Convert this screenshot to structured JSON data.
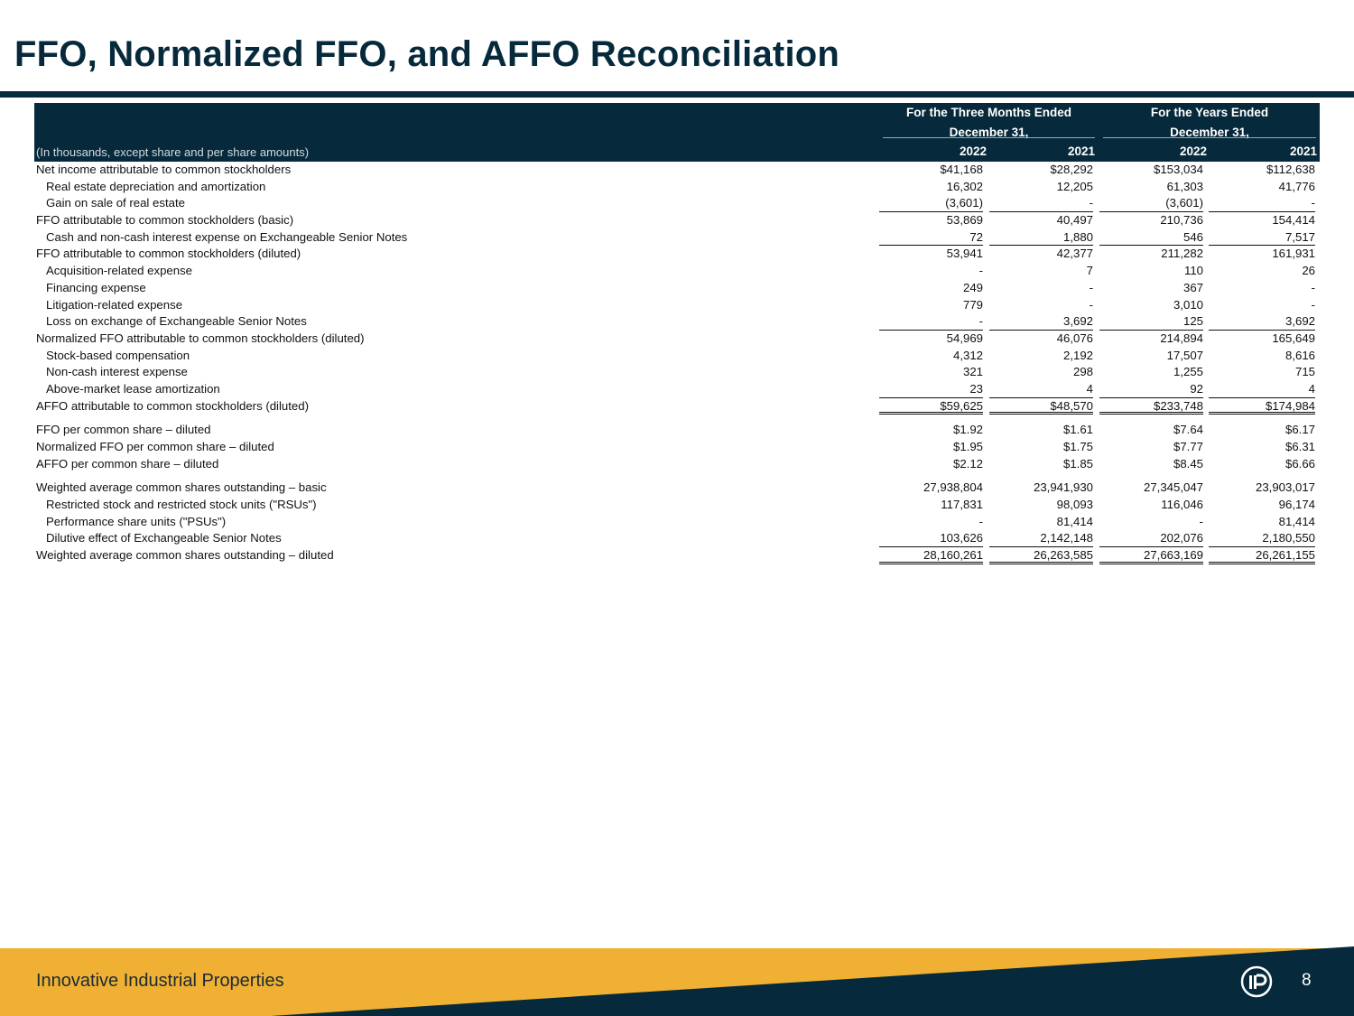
{
  "title": "FFO, Normalized FFO, and AFFO Reconciliation",
  "table": {
    "group_headers": [
      {
        "line1": "For the Three Months Ended",
        "line2": "December 31,"
      },
      {
        "line1": "For the Years Ended",
        "line2": "December 31,"
      }
    ],
    "caption": "(In thousands, except share and per share amounts)",
    "years": [
      "2022",
      "2021",
      "2022",
      "2021"
    ],
    "rows": [
      {
        "label": "Net income attributable to common stockholders",
        "values": [
          "$41,168",
          "$28,292",
          "$153,034",
          "$112,638"
        ]
      },
      {
        "label": "Real estate depreciation and amortization",
        "values": [
          "16,302",
          "12,205",
          "61,303",
          "41,776"
        ]
      },
      {
        "label": "Gain on sale of real estate",
        "values": [
          "(3,601)",
          "-",
          "(3,601)",
          "-"
        ]
      },
      {
        "label": "FFO attributable to common stockholders (basic)",
        "values": [
          "53,869",
          "40,497",
          "210,736",
          "154,414"
        ]
      },
      {
        "label": "Cash and non-cash interest expense on Exchangeable Senior Notes",
        "values": [
          "72",
          "1,880",
          "546",
          "7,517"
        ]
      },
      {
        "label": "FFO attributable to common stockholders (diluted)",
        "values": [
          "53,941",
          "42,377",
          "211,282",
          "161,931"
        ]
      },
      {
        "label": "Acquisition-related expense",
        "values": [
          "-",
          "7",
          "110",
          "26"
        ]
      },
      {
        "label": "Financing expense",
        "values": [
          "249",
          "-",
          "367",
          "-"
        ]
      },
      {
        "label": "Litigation-related expense",
        "values": [
          "779",
          "-",
          "3,010",
          "-"
        ]
      },
      {
        "label": "Loss on exchange of Exchangeable Senior Notes",
        "values": [
          "-",
          "3,692",
          "125",
          "3,692"
        ]
      },
      {
        "label": "Normalized FFO attributable to common stockholders (diluted)",
        "values": [
          "54,969",
          "46,076",
          "214,894",
          "165,649"
        ]
      },
      {
        "label": "Stock-based compensation",
        "values": [
          "4,312",
          "2,192",
          "17,507",
          "8,616"
        ]
      },
      {
        "label": "Non-cash interest expense",
        "values": [
          "321",
          "298",
          "1,255",
          "715"
        ]
      },
      {
        "label": "Above-market lease amortization",
        "values": [
          "23",
          "4",
          "92",
          "4"
        ]
      },
      {
        "label": "AFFO attributable to common stockholders (diluted)",
        "values": [
          "$59,625",
          "$48,570",
          "$233,748",
          "$174,984"
        ]
      },
      {
        "label": "FFO per common share – diluted",
        "values": [
          "$1.92",
          "$1.61",
          "$7.64",
          "$6.17"
        ]
      },
      {
        "label": "Normalized FFO per common share – diluted",
        "values": [
          "$1.95",
          "$1.75",
          "$7.77",
          "$6.31"
        ]
      },
      {
        "label": "AFFO per common share – diluted",
        "values": [
          "$2.12",
          "$1.85",
          "$8.45",
          "$6.66"
        ]
      },
      {
        "label": "Weighted average common shares outstanding – basic",
        "values": [
          "27,938,804",
          "23,941,930",
          "27,345,047",
          "23,903,017"
        ]
      },
      {
        "label": "Restricted stock and restricted stock units (\"RSUs\")",
        "values": [
          "117,831",
          "98,093",
          "116,046",
          "96,174"
        ]
      },
      {
        "label": "Performance share units (\"PSUs\")",
        "values": [
          "-",
          "81,414",
          "-",
          "81,414"
        ]
      },
      {
        "label": "Dilutive effect of Exchangeable Senior Notes",
        "values": [
          "103,626",
          "2,142,148",
          "202,076",
          "2,180,550"
        ]
      },
      {
        "label": "Weighted average common shares outstanding – diluted",
        "values": [
          "28,160,261",
          "26,263,585",
          "27,663,169",
          "26,261,155"
        ]
      }
    ]
  },
  "footer": {
    "company": "Innovative Industrial Properties",
    "page_number": "8",
    "logo_icon": "iip-logo-icon"
  },
  "colors": {
    "navy": "#06293b",
    "gold": "#f0b033"
  }
}
